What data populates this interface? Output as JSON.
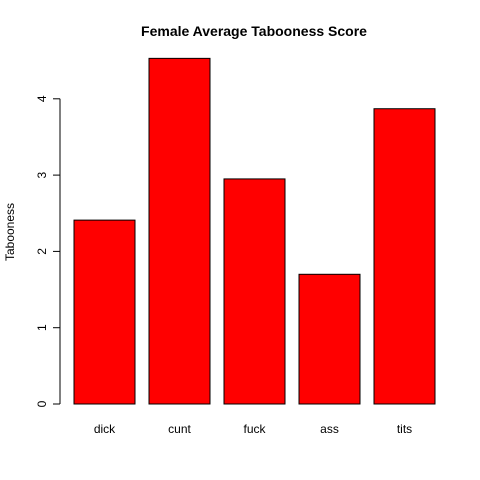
{
  "chart_data": {
    "type": "bar",
    "title": "Female Average Tabooness Score",
    "xlabel": "",
    "ylabel": "Tabooness",
    "categories": [
      "dick",
      "cunt",
      "fuck",
      "ass",
      "tits"
    ],
    "values": [
      2.41,
      4.53,
      2.95,
      1.7,
      3.87
    ],
    "ylim": [
      0,
      4.6
    ],
    "yticks": [
      "0",
      "1",
      "2",
      "3",
      "4"
    ],
    "bar_color": "#ff0000",
    "grid": false,
    "legend": "none"
  }
}
